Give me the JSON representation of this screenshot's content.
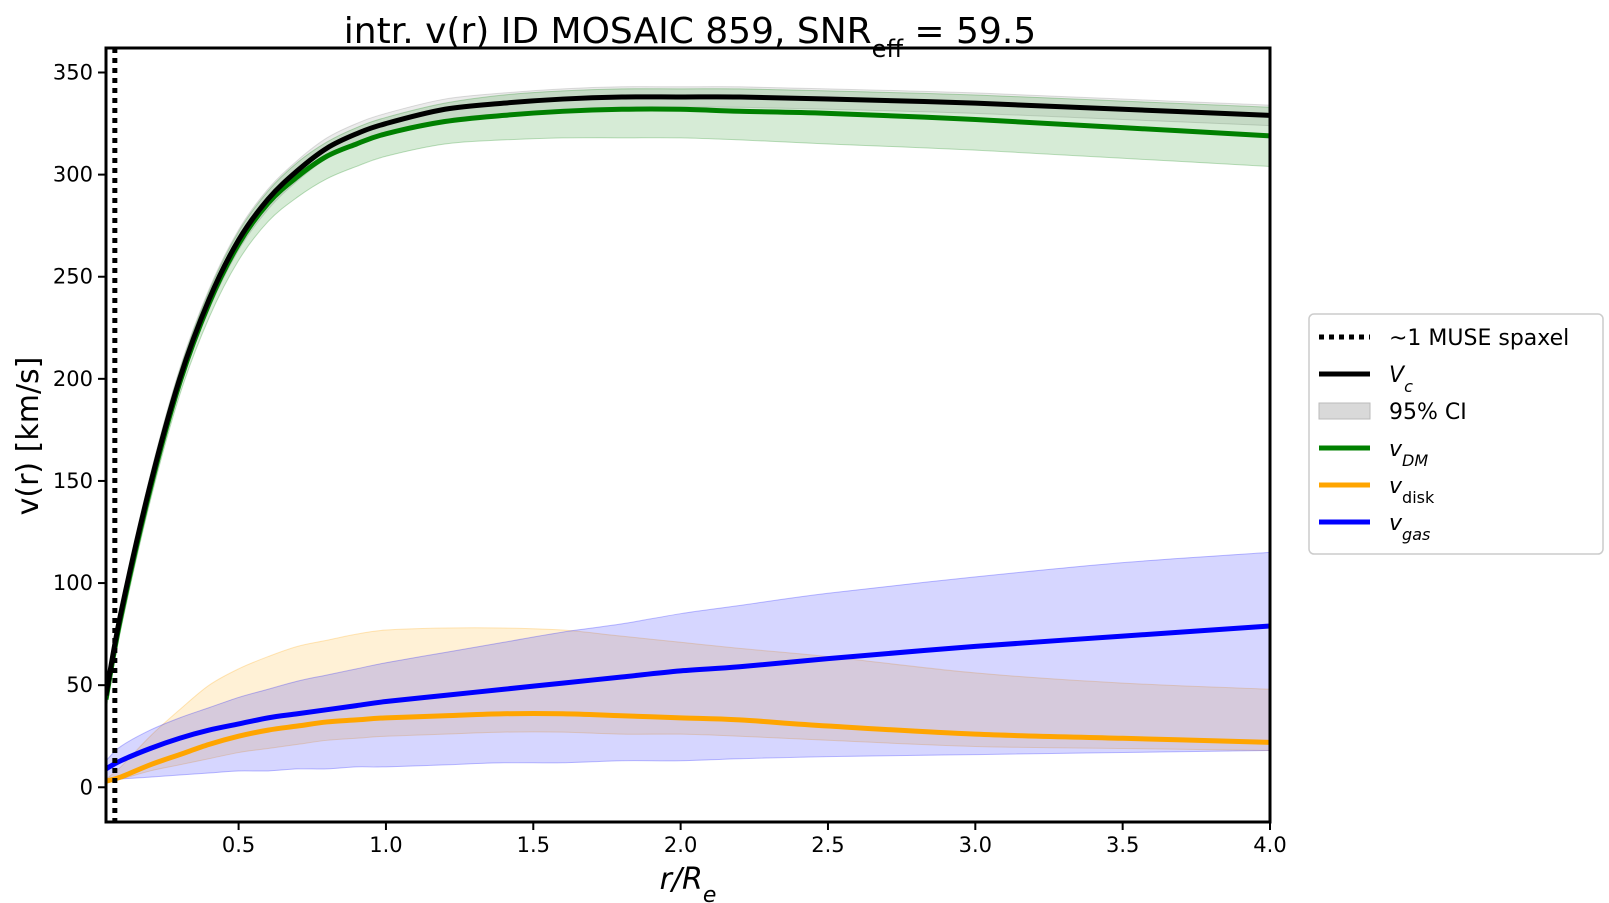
{
  "chart_data": {
    "type": "line",
    "title": {
      "main": "intr. v(r) ID MOSAIC 859, SNR",
      "subscript": "eff",
      "suffix": " = 59.5"
    },
    "xlabel": {
      "base": "r/R",
      "subscript": "e"
    },
    "ylabel": "v(r) [km/s]",
    "xlim": [
      0.05,
      4.0
    ],
    "ylim": [
      -17,
      362
    ],
    "xticks": [
      0.5,
      1.0,
      1.5,
      2.0,
      2.5,
      3.0,
      3.5,
      4.0
    ],
    "xtick_labels": [
      "0.5",
      "1.0",
      "1.5",
      "2.0",
      "2.5",
      "3.0",
      "3.5",
      "4.0"
    ],
    "yticks": [
      0,
      50,
      100,
      150,
      200,
      250,
      300,
      350
    ],
    "ytick_labels": [
      "0",
      "50",
      "100",
      "150",
      "200",
      "250",
      "300",
      "350"
    ],
    "spaxel_line_x": 0.08,
    "x": [
      0.05,
      0.1,
      0.2,
      0.3,
      0.4,
      0.5,
      0.6,
      0.7,
      0.8,
      0.9,
      1.0,
      1.2,
      1.4,
      1.6,
      1.8,
      2.0,
      2.2,
      2.5,
      3.0,
      3.5,
      4.0
    ],
    "series": [
      {
        "name": "V_c",
        "color": "#000000",
        "values": [
          45,
          85,
          148,
          200,
          239,
          268,
          288,
          302,
          313,
          320,
          325,
          332,
          335,
          337,
          338,
          338,
          338,
          337,
          335,
          332,
          329
        ],
        "band_lower": [
          40,
          80,
          143,
          195,
          234,
          263,
          283,
          297,
          308,
          315,
          320,
          327,
          330,
          332,
          333,
          333,
          333,
          332,
          330,
          327,
          324
        ],
        "band_upper": [
          50,
          90,
          153,
          205,
          244,
          273,
          293,
          307,
          318,
          325,
          330,
          337,
          340,
          342,
          343,
          343,
          343,
          342,
          340,
          337,
          334
        ],
        "band_color": "#808080"
      },
      {
        "name": "v_DM",
        "color": "#008000",
        "values": [
          43,
          83,
          146,
          198,
          237,
          266,
          286,
          299,
          309,
          315,
          320,
          326,
          329,
          331,
          332,
          332,
          331,
          330,
          327,
          323,
          319
        ],
        "band_lower": [
          38,
          77,
          140,
          192,
          230,
          258,
          277,
          289,
          298,
          304,
          309,
          315,
          317,
          318,
          318,
          318,
          317,
          315,
          312,
          308,
          304
        ],
        "band_upper": [
          48,
          89,
          152,
          204,
          243,
          272,
          292,
          306,
          316,
          323,
          328,
          335,
          339,
          341,
          342,
          342,
          342,
          341,
          339,
          336,
          333
        ],
        "band_color": "#008000"
      },
      {
        "name": "v_disk",
        "color": "#FFA500",
        "values": [
          3,
          5,
          11,
          16,
          21,
          25,
          28,
          30,
          32,
          33,
          34,
          35,
          36,
          36,
          35,
          34,
          33,
          30,
          26,
          24,
          22
        ],
        "band_lower": [
          3,
          4,
          8,
          11,
          14,
          17,
          19,
          21,
          23,
          24,
          25,
          26,
          27,
          27,
          26,
          26,
          25,
          23,
          20,
          19,
          18
        ],
        "band_upper": [
          4,
          10,
          25,
          38,
          50,
          58,
          64,
          69,
          72,
          75,
          77,
          78,
          78,
          77,
          74,
          71,
          68,
          64,
          56,
          51,
          48
        ],
        "band_color": "#FFA500"
      },
      {
        "name": "v_gas",
        "color": "#0000FF",
        "values": [
          9,
          13,
          19,
          24,
          28,
          31,
          34,
          36,
          38,
          40,
          42,
          45,
          48,
          51,
          54,
          57,
          59,
          63,
          69,
          74,
          79
        ],
        "band_lower": [
          3,
          4,
          5,
          6,
          7,
          8,
          8,
          9,
          9,
          10,
          10,
          11,
          12,
          12,
          13,
          13,
          14,
          15,
          16,
          17,
          18
        ],
        "band_upper": [
          13,
          20,
          28,
          34,
          39,
          44,
          48,
          52,
          55,
          58,
          61,
          66,
          71,
          76,
          80,
          85,
          89,
          95,
          103,
          110,
          115
        ],
        "band_color": "#0000FF"
      }
    ],
    "legend": {
      "position": "right",
      "entries": [
        {
          "kind": "dotted",
          "label": "~1 MUSE spaxel",
          "color": "#000000"
        },
        {
          "kind": "line",
          "label_base": "V",
          "label_sub": "c",
          "color": "#000000"
        },
        {
          "kind": "band",
          "label": "95% CI",
          "color": "#d9d9d9"
        },
        {
          "kind": "line",
          "label_base": "v",
          "label_sub": "DM",
          "color": "#008000"
        },
        {
          "kind": "line",
          "label_base": "v",
          "label_sub": "disk",
          "color": "#FFA500"
        },
        {
          "kind": "line",
          "label_base": "v",
          "label_sub": "gas",
          "color": "#0000FF"
        }
      ]
    }
  }
}
